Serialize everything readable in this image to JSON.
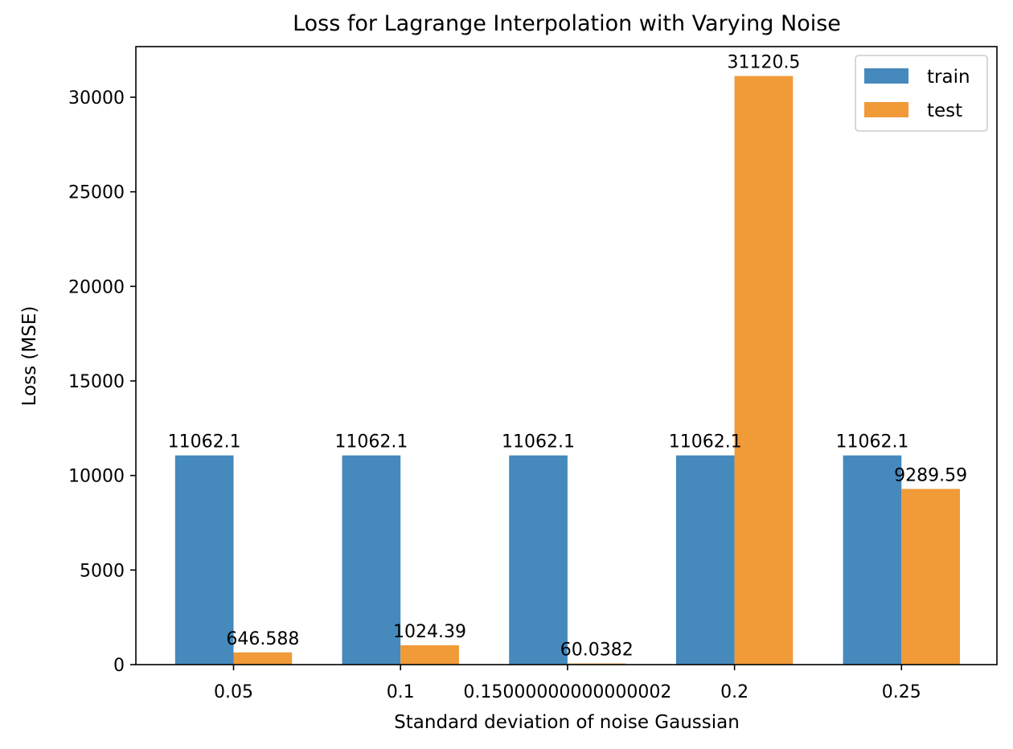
{
  "chart_data": {
    "type": "bar",
    "title": "Loss for Lagrange Interpolation with Varying Noise",
    "xlabel": "Standard deviation of noise Gaussian",
    "ylabel": "Loss (MSE)",
    "categories": [
      "0.05",
      "0.1",
      "0.15000000000000002",
      "0.2",
      "0.25"
    ],
    "series": [
      {
        "name": "train",
        "color": "#4589bd",
        "values": [
          11062.1,
          11062.1,
          11062.1,
          11062.1,
          11062.1
        ],
        "labels": [
          "11062.1",
          "11062.1",
          "11062.1",
          "11062.1",
          "11062.1"
        ]
      },
      {
        "name": "test",
        "color": "#f19a38",
        "values": [
          646.588,
          1024.39,
          60.0382,
          31120.5,
          9289.59
        ],
        "labels": [
          "646.588",
          "1024.39",
          "60.0382",
          "31120.5",
          "9289.59"
        ]
      }
    ],
    "yticks": [
      0,
      5000,
      10000,
      15000,
      20000,
      25000,
      30000
    ],
    "ylim": [
      0,
      32676.525
    ],
    "legend": "top-right",
    "grid": false
  }
}
